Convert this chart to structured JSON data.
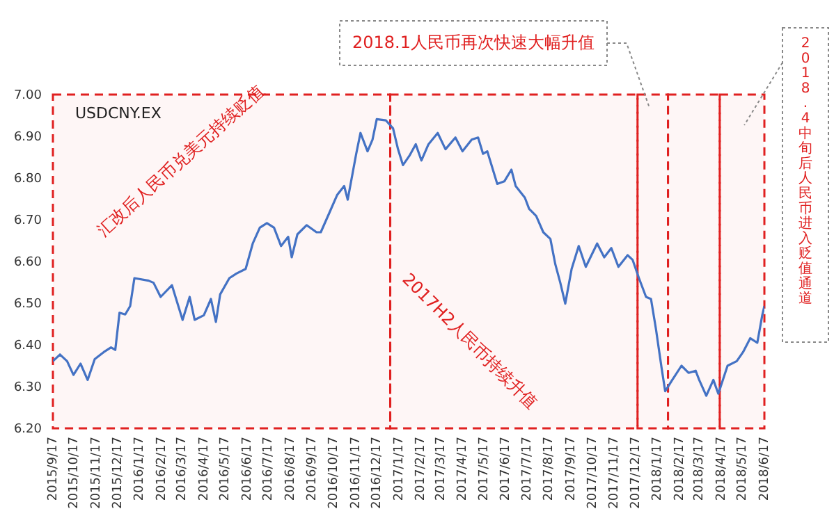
{
  "chart_data": {
    "type": "line",
    "title": "USDCNY.EX",
    "x": [
      "2015-09-17",
      "2015-09-27",
      "2015-10-07",
      "2015-10-16",
      "2015-10-26",
      "2015-11-05",
      "2015-11-15",
      "2015-11-28",
      "2015-12-08",
      "2015-12-14",
      "2015-12-20",
      "2015-12-28",
      "2016-01-04",
      "2016-01-10",
      "2016-01-30",
      "2016-02-06",
      "2016-02-16",
      "2016-03-03",
      "2016-03-12",
      "2016-03-18",
      "2016-03-28",
      "2016-04-04",
      "2016-04-17",
      "2016-04-27",
      "2016-05-04",
      "2016-05-10",
      "2016-05-23",
      "2016-06-02",
      "2016-06-15",
      "2016-06-25",
      "2016-07-05",
      "2016-07-15",
      "2016-07-25",
      "2016-08-04",
      "2016-08-14",
      "2016-08-19",
      "2016-08-27",
      "2016-09-09",
      "2016-09-23",
      "2016-09-29",
      "2016-10-12",
      "2016-10-22",
      "2016-11-01",
      "2016-11-06",
      "2016-11-18",
      "2016-11-24",
      "2016-12-04",
      "2016-12-11",
      "2016-12-17",
      "2016-12-30",
      "2017-01-09",
      "2017-01-16",
      "2017-01-23",
      "2017-02-01",
      "2017-02-10",
      "2017-02-18",
      "2017-02-28",
      "2017-03-13",
      "2017-03-24",
      "2017-04-07",
      "2017-04-17",
      "2017-04-30",
      "2017-05-09",
      "2017-05-16",
      "2017-05-22",
      "2017-05-29",
      "2017-06-05",
      "2017-06-15",
      "2017-06-25",
      "2017-07-01",
      "2017-07-14",
      "2017-07-20",
      "2017-07-30",
      "2017-08-09",
      "2017-08-19",
      "2017-08-26",
      "2017-09-02",
      "2017-09-09",
      "2017-09-18",
      "2017-09-28",
      "2017-10-08",
      "2017-10-24",
      "2017-11-03",
      "2017-11-13",
      "2017-11-23",
      "2017-12-06",
      "2017-12-13",
      "2017-12-22",
      "2018-01-01",
      "2018-01-08",
      "2018-01-15",
      "2018-01-23",
      "2018-01-28",
      "2018-02-07",
      "2018-02-20",
      "2018-03-02",
      "2018-03-12",
      "2018-03-17",
      "2018-03-27",
      "2018-04-06",
      "2018-04-13",
      "2018-04-26",
      "2018-05-09",
      "2018-05-18",
      "2018-05-28",
      "2018-06-07",
      "2018-06-14",
      "2018-06-17"
    ],
    "series": [
      {
        "color": "#4472c4",
        "values": [
          6.361,
          6.377,
          6.361,
          6.328,
          6.355,
          6.316,
          6.366,
          6.383,
          6.394,
          6.388,
          6.477,
          6.473,
          6.493,
          6.56,
          6.554,
          6.549,
          6.515,
          6.543,
          6.493,
          6.46,
          6.515,
          6.46,
          6.471,
          6.51,
          6.455,
          6.521,
          6.56,
          6.571,
          6.582,
          6.643,
          6.681,
          6.692,
          6.681,
          6.637,
          6.659,
          6.61,
          6.665,
          6.687,
          6.67,
          6.67,
          6.72,
          6.759,
          6.781,
          6.748,
          6.858,
          6.908,
          6.864,
          6.892,
          6.941,
          6.938,
          6.919,
          6.869,
          6.831,
          6.853,
          6.881,
          6.842,
          6.881,
          6.908,
          6.869,
          6.897,
          6.864,
          6.892,
          6.897,
          6.858,
          6.864,
          6.825,
          6.786,
          6.792,
          6.82,
          6.781,
          6.753,
          6.726,
          6.709,
          6.67,
          6.654,
          6.593,
          6.549,
          6.499,
          6.582,
          6.637,
          6.587,
          6.643,
          6.61,
          6.632,
          6.587,
          6.615,
          6.604,
          6.56,
          6.515,
          6.51,
          6.438,
          6.344,
          6.289,
          6.316,
          6.35,
          6.333,
          6.338,
          6.316,
          6.278,
          6.316,
          6.283,
          6.35,
          6.361,
          6.383,
          6.416,
          6.405,
          6.471,
          6.493
        ]
      }
    ],
    "xlim": [
      "2015-09-17",
      "2018-06-17"
    ],
    "xticks": [
      {
        "value": "2015-09-17",
        "label": "2015/9/17"
      },
      {
        "value": "2015-10-17",
        "label": "2015/10/17"
      },
      {
        "value": "2015-11-17",
        "label": "2015/11/17"
      },
      {
        "value": "2015-12-17",
        "label": "2015/12/17"
      },
      {
        "value": "2016-01-17",
        "label": "2016/1/17"
      },
      {
        "value": "2016-02-17",
        "label": "2016/2/17"
      },
      {
        "value": "2016-03-17",
        "label": "2016/3/17"
      },
      {
        "value": "2016-04-17",
        "label": "2016/4/17"
      },
      {
        "value": "2016-05-17",
        "label": "2016/5/17"
      },
      {
        "value": "2016-06-17",
        "label": "2016/6/17"
      },
      {
        "value": "2016-07-17",
        "label": "2016/7/17"
      },
      {
        "value": "2016-08-17",
        "label": "2016/8/17"
      },
      {
        "value": "2016-09-17",
        "label": "2016/9/17"
      },
      {
        "value": "2016-10-17",
        "label": "2016/10/17"
      },
      {
        "value": "2016-11-17",
        "label": "2016/11/17"
      },
      {
        "value": "2016-12-17",
        "label": "2016/12/17"
      },
      {
        "value": "2017-01-17",
        "label": "2017/1/17"
      },
      {
        "value": "2017-02-17",
        "label": "2017/2/17"
      },
      {
        "value": "2017-03-17",
        "label": "2017/3/17"
      },
      {
        "value": "2017-04-17",
        "label": "2017/4/17"
      },
      {
        "value": "2017-05-17",
        "label": "2017/5/17"
      },
      {
        "value": "2017-06-17",
        "label": "2017/6/17"
      },
      {
        "value": "2017-07-17",
        "label": "2017/7/17"
      },
      {
        "value": "2017-08-17",
        "label": "2017/8/17"
      },
      {
        "value": "2017-09-17",
        "label": "2017/9/17"
      },
      {
        "value": "2017-10-17",
        "label": "2017/10/17"
      },
      {
        "value": "2017-11-17",
        "label": "2017/11/17"
      },
      {
        "value": "2017-12-17",
        "label": "2017/12/17"
      },
      {
        "value": "2018-01-17",
        "label": "2018/1/17"
      },
      {
        "value": "2018-02-17",
        "label": "2018/2/17"
      },
      {
        "value": "2018-03-17",
        "label": "2018/3/17"
      },
      {
        "value": "2018-04-17",
        "label": "2018/4/17"
      },
      {
        "value": "2018-05-17",
        "label": "2018/5/17"
      },
      {
        "value": "2018-06-17",
        "label": "2018/6/17"
      }
    ],
    "ylim": [
      6.2,
      7.0
    ],
    "yticks": [
      {
        "value": 6.2,
        "label": "6.20"
      },
      {
        "value": 6.3,
        "label": "6.30"
      },
      {
        "value": 6.4,
        "label": "6.40"
      },
      {
        "value": 6.5,
        "label": "6.50"
      },
      {
        "value": 6.6,
        "label": "6.60"
      },
      {
        "value": 6.7,
        "label": "6.70"
      },
      {
        "value": 6.8,
        "label": "6.80"
      },
      {
        "value": 6.9,
        "label": "6.90"
      },
      {
        "value": 7.0,
        "label": "7.00"
      }
    ],
    "bands": [
      {
        "axis": "x",
        "from": "2015-09-17",
        "to": "2017-01-05",
        "label": "汇改后人民币兑美元持续贬值",
        "color": "#e02020"
      },
      {
        "axis": "x",
        "from": "2017-01-05",
        "to": "2017-12-20",
        "label": "2017H2人民币持续升值",
        "color": "#e02020"
      },
      {
        "axis": "x",
        "from": "2017-12-20",
        "to": "2018-02-01",
        "label": "2018.1人民币再次快速大幅升值",
        "color": "#e02020"
      },
      {
        "axis": "x",
        "from": "2018-02-01",
        "to": "2018-04-15",
        "label": null,
        "color": "#e02020"
      },
      {
        "axis": "x",
        "from": "2018-04-15",
        "to": "2018-06-17",
        "label": "2018.4中旬后人民币进入贬值通道",
        "color": "#e02020"
      }
    ],
    "grid": false,
    "legend": false,
    "marker": "none",
    "line_style": "solid"
  }
}
